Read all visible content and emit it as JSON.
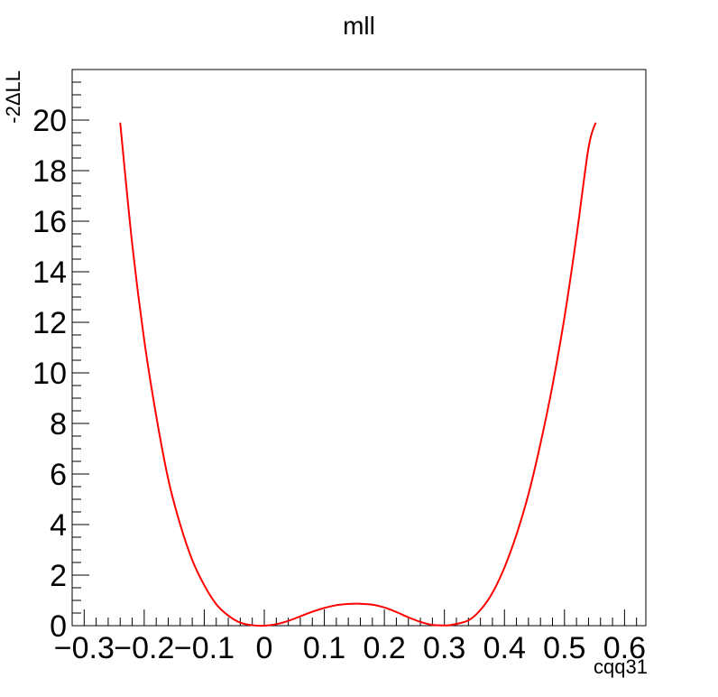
{
  "chart_data": {
    "type": "line",
    "title": "mll",
    "xlabel": "cqq31",
    "ylabel": "-2ΔLL",
    "xlim": [
      -0.32,
      0.6355
    ],
    "ylim": [
      0,
      22
    ],
    "grid": false,
    "line_color": "#ff0000",
    "x_ticks": [
      -0.3,
      -0.2,
      -0.1,
      0,
      0.1,
      0.2,
      0.3,
      0.4,
      0.5,
      0.6
    ],
    "x_tick_labels": [
      "−0.3",
      "−0.2",
      "−0.1",
      "0",
      "0.1",
      "0.2",
      "0.3",
      "0.4",
      "0.5",
      "0.6"
    ],
    "y_ticks": [
      0,
      2,
      4,
      6,
      8,
      10,
      12,
      14,
      16,
      18,
      20
    ],
    "y_tick_labels": [
      "0",
      "2",
      "4",
      "6",
      "8",
      "10",
      "12",
      "14",
      "16",
      "18",
      "20"
    ],
    "series": [
      {
        "x": [
          -0.24,
          -0.22,
          -0.2,
          -0.18,
          -0.16,
          -0.14,
          -0.12,
          -0.1,
          -0.08,
          -0.06,
          -0.04,
          -0.02,
          0,
          0.02,
          0.04,
          0.06,
          0.08,
          0.1,
          0.12,
          0.14,
          0.156,
          0.18,
          0.2,
          0.22,
          0.24,
          0.26,
          0.28,
          0.3,
          0.312,
          0.34,
          0.36,
          0.38,
          0.4,
          0.42,
          0.44,
          0.46,
          0.48,
          0.5,
          0.52,
          0.54,
          0.552
        ],
        "y": [
          19.9,
          15.1,
          11.3,
          8.3,
          5.8,
          4.0,
          2.6,
          1.6,
          0.85,
          0.4,
          0.12,
          0.02,
          0,
          0.06,
          0.19,
          0.37,
          0.55,
          0.7,
          0.81,
          0.86,
          0.87,
          0.83,
          0.72,
          0.54,
          0.33,
          0.15,
          0.03,
          0.01,
          0.03,
          0.21,
          0.62,
          1.3,
          2.3,
          3.6,
          5.2,
          7.2,
          9.5,
          12.2,
          15.4,
          18.9,
          19.9
        ]
      }
    ]
  }
}
